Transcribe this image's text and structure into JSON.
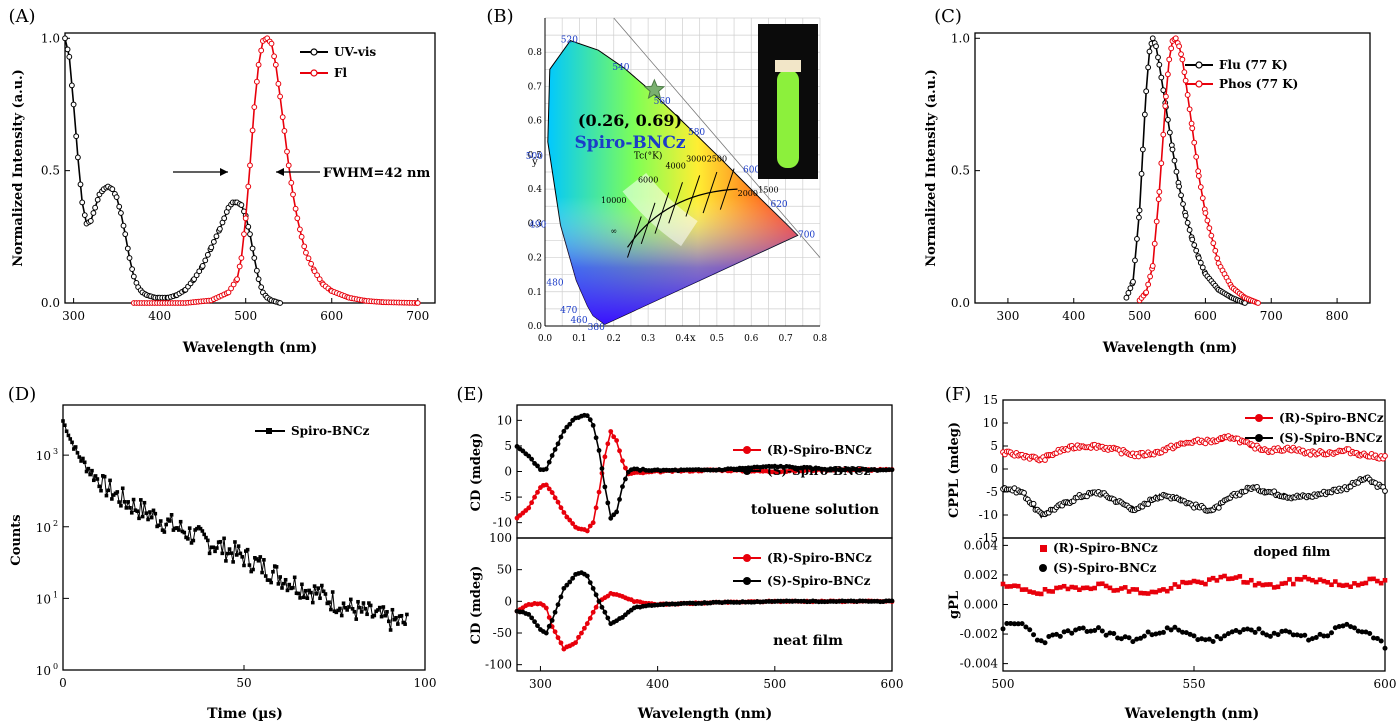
{
  "chart_data": [
    {
      "panel": "(A)",
      "type": "line",
      "xlabel": "Wavelength (nm)",
      "ylabel": "Normalized Intensity (a.u.)",
      "xlim": [
        290,
        720
      ],
      "ylim": [
        0,
        1.02
      ],
      "xticks": [
        "300",
        "400",
        "500",
        "600",
        "700"
      ],
      "yticks": [
        "0.0",
        "0.5",
        "1.0"
      ],
      "annotation": "FWHM=42 nm",
      "legend": "top-right",
      "series": [
        {
          "name": "UV-vis",
          "color": "#000000",
          "x": [
            290,
            295,
            300,
            305,
            310,
            315,
            320,
            325,
            330,
            335,
            340,
            345,
            350,
            355,
            360,
            365,
            370,
            375,
            380,
            385,
            390,
            395,
            400,
            410,
            420,
            430,
            440,
            450,
            460,
            470,
            475,
            480,
            485,
            490,
            495,
            500,
            505,
            510,
            515,
            520,
            525,
            530,
            535,
            540
          ],
          "y": [
            1.0,
            0.93,
            0.75,
            0.55,
            0.38,
            0.3,
            0.31,
            0.36,
            0.41,
            0.43,
            0.44,
            0.43,
            0.4,
            0.34,
            0.26,
            0.17,
            0.1,
            0.06,
            0.04,
            0.03,
            0.025,
            0.02,
            0.02,
            0.02,
            0.03,
            0.05,
            0.09,
            0.14,
            0.21,
            0.28,
            0.32,
            0.36,
            0.38,
            0.38,
            0.37,
            0.33,
            0.26,
            0.17,
            0.09,
            0.04,
            0.02,
            0.01,
            0.005,
            0
          ]
        },
        {
          "name": "Fl",
          "color": "#e8000b",
          "x": [
            370,
            400,
            430,
            460,
            480,
            490,
            495,
            500,
            505,
            510,
            515,
            520,
            525,
            530,
            535,
            540,
            545,
            550,
            555,
            560,
            565,
            570,
            580,
            590,
            600,
            620,
            640,
            660,
            700
          ],
          "y": [
            0,
            0,
            0,
            0.01,
            0.04,
            0.09,
            0.17,
            0.32,
            0.52,
            0.74,
            0.9,
            0.99,
            1.0,
            0.98,
            0.9,
            0.78,
            0.65,
            0.52,
            0.41,
            0.32,
            0.25,
            0.19,
            0.12,
            0.07,
            0.045,
            0.02,
            0.008,
            0.003,
            0
          ]
        }
      ]
    },
    {
      "panel": "(B)",
      "type": "diagram",
      "xlabel": "x",
      "ylabel": "y",
      "xlim": [
        0.0,
        0.8
      ],
      "ylim": [
        0.0,
        0.9
      ],
      "xticks": [
        "0.0",
        "0.1",
        "0.2",
        "0.3",
        "0.4",
        "0.5",
        "0.6",
        "0.7",
        "0.8"
      ],
      "yticks": [
        "0.0",
        "0.1",
        "0.2",
        "0.3",
        "0.4",
        "0.5",
        "0.6",
        "0.7",
        "0.8"
      ],
      "wavelength_labels": [
        "380",
        "460",
        "470",
        "480",
        "490",
        "500",
        "520",
        "540",
        "560",
        "580",
        "600",
        "620",
        "700"
      ],
      "cct_label": "Tc(°K)",
      "cct_values": [
        "10000",
        "6000",
        "4000",
        "3000",
        "2500",
        "2000",
        "1500",
        "∞"
      ],
      "point": {
        "x": 0.26,
        "y": 0.69,
        "label": "(0.26, 0.69)",
        "name": "Spiro-BNCz"
      }
    },
    {
      "panel": "(C)",
      "type": "line",
      "xlabel": "Wavelength (nm)",
      "ylabel": "Normalized Intensity (a.u.)",
      "xlim": [
        250,
        850
      ],
      "ylim": [
        0,
        1.02
      ],
      "xticks": [
        "300",
        "400",
        "500",
        "600",
        "700",
        "800"
      ],
      "yticks": [
        "0.0",
        "0.5",
        "1.0"
      ],
      "legend": "top-right",
      "series": [
        {
          "name": "Flu (77 K)",
          "color": "#000000",
          "x": [
            480,
            490,
            500,
            505,
            510,
            515,
            520,
            525,
            530,
            540,
            550,
            560,
            570,
            580,
            590,
            600,
            620,
            640,
            660
          ],
          "y": [
            0.02,
            0.08,
            0.35,
            0.58,
            0.8,
            0.95,
            1.0,
            0.97,
            0.9,
            0.74,
            0.58,
            0.44,
            0.33,
            0.24,
            0.17,
            0.11,
            0.05,
            0.02,
            0
          ]
        },
        {
          "name": "Phos (77 K)",
          "color": "#e8000b",
          "x": [
            500,
            510,
            520,
            530,
            540,
            545,
            550,
            555,
            560,
            565,
            570,
            580,
            590,
            600,
            620,
            640,
            660,
            680
          ],
          "y": [
            0.01,
            0.04,
            0.14,
            0.42,
            0.78,
            0.92,
            0.99,
            1.0,
            0.97,
            0.92,
            0.84,
            0.66,
            0.48,
            0.34,
            0.15,
            0.06,
            0.02,
            0
          ]
        }
      ]
    },
    {
      "panel": "(D)",
      "type": "line",
      "xlabel": "Time (µs)",
      "ylabel": "Counts",
      "xlim": [
        0,
        100
      ],
      "ylim_log10": [
        0,
        3.7
      ],
      "scale": "log",
      "xticks": [
        "0",
        "50",
        "100"
      ],
      "yticks": [
        "10",
        "10",
        "10",
        "10"
      ],
      "yticks_exp": [
        "0",
        "1",
        "2",
        "3"
      ],
      "legend": "top-right",
      "series": [
        {
          "name": "Spiro-BNCz",
          "color": "#000000",
          "x": [
            0,
            2,
            4,
            6,
            8,
            10,
            12,
            15,
            18,
            20,
            25,
            30,
            35,
            40,
            45,
            50,
            55,
            60,
            65,
            70,
            75,
            80,
            85,
            90,
            95
          ],
          "y": [
            3000,
            1700,
            1050,
            750,
            560,
            440,
            350,
            270,
            215,
            190,
            140,
            105,
            80,
            62,
            48,
            38,
            28,
            20,
            15,
            12,
            9,
            7,
            6,
            5,
            4.5
          ]
        }
      ]
    },
    {
      "panel": "(E)",
      "type": "line",
      "xlabel": "Wavelength (nm)",
      "xlim": [
        280,
        600
      ],
      "xticks": [
        "300",
        "400",
        "500",
        "600"
      ],
      "top": {
        "ylabel": "CD (mdeg)",
        "ylim": [
          -13,
          13
        ],
        "yticks": [
          "10",
          "5",
          "0",
          "-5",
          "-10"
        ],
        "annotation": "toluene solution",
        "series": [
          {
            "name": "(R)-Spiro-BNCz",
            "color": "#e8000b",
            "x": [
              280,
              290,
              300,
              305,
              310,
              320,
              330,
              340,
              345,
              350,
              355,
              360,
              365,
              370,
              375,
              380,
              390,
              400,
              450,
              500,
              550,
              600
            ],
            "y": [
              -9,
              -7,
              -3,
              -2.5,
              -4,
              -8,
              -11,
              -11.5,
              -10,
              -4,
              3,
              7.8,
              6,
              2,
              -0.5,
              -0.3,
              -0.2,
              0,
              0.3,
              0,
              0.4,
              0.3
            ]
          },
          {
            "name": "(S)-Spiro-BNCz",
            "color": "#000000",
            "x": [
              280,
              290,
              300,
              305,
              310,
              320,
              330,
              340,
              345,
              350,
              355,
              360,
              365,
              370,
              375,
              380,
              390,
              400,
              450,
              500,
              550,
              600
            ],
            "y": [
              5,
              3,
              0.3,
              0.5,
              3,
              8,
              10.5,
              11,
              9,
              4,
              -3,
              -9,
              -8,
              -3,
              0,
              0.4,
              0.3,
              0.2,
              0.3,
              1,
              0.4,
              0.3
            ]
          }
        ]
      },
      "bottom": {
        "ylabel": "CD (mdeg)",
        "ylim": [
          -110,
          100
        ],
        "yticks": [
          "100",
          "50",
          "0",
          "-50",
          "-100"
        ],
        "annotation": "neat film",
        "series": [
          {
            "name": "(R)-Spiro-BNCz",
            "color": "#e8000b",
            "x": [
              280,
              290,
              300,
              305,
              310,
              320,
              330,
              340,
              350,
              360,
              370,
              380,
              400,
              450,
              500,
              550,
              600
            ],
            "y": [
              -15,
              -5,
              -3,
              -10,
              -40,
              -75,
              -65,
              -35,
              0,
              12,
              8,
              0,
              -5,
              -2,
              0,
              0,
              0
            ]
          },
          {
            "name": "(S)-Spiro-BNCz",
            "color": "#000000",
            "x": [
              280,
              290,
              300,
              305,
              310,
              320,
              330,
              335,
              340,
              350,
              360,
              370,
              380,
              400,
              450,
              500,
              550,
              600
            ],
            "y": [
              -15,
              -20,
              -45,
              -50,
              -30,
              20,
              42,
              45,
              40,
              0,
              -35,
              -25,
              -10,
              -5,
              -2,
              0,
              0,
              0
            ]
          }
        ]
      }
    },
    {
      "panel": "(F)",
      "type": "line",
      "xlabel": "Wavelength (nm)",
      "xlim": [
        500,
        600
      ],
      "xticks": [
        "500",
        "550",
        "600"
      ],
      "top": {
        "ylabel": "CPPL (mdeg)",
        "ylim": [
          -15,
          15
        ],
        "yticks": [
          "15",
          "10",
          "5",
          "0",
          "-5",
          "-10",
          "-15"
        ],
        "series": [
          {
            "name": "(R)-Spiro-BNCz",
            "color": "#e8000b",
            "x": [
              500,
              505,
              510,
              515,
              520,
              525,
              530,
              535,
              540,
              545,
              550,
              555,
              560,
              565,
              570,
              575,
              580,
              585,
              590,
              595,
              600
            ],
            "y": [
              3.5,
              3,
              2,
              4,
              5,
              5,
              4,
              3,
              3.5,
              5,
              6,
              6,
              7,
              5,
              4,
              4.5,
              3.5,
              3.5,
              4,
              3,
              2.5
            ]
          },
          {
            "name": "(S)-Spiro-BNCz",
            "color": "#000000",
            "x": [
              500,
              505,
              510,
              515,
              520,
              525,
              530,
              535,
              540,
              545,
              550,
              555,
              560,
              565,
              570,
              575,
              580,
              585,
              590,
              595,
              600
            ],
            "y": [
              -4,
              -5,
              -10,
              -8,
              -6,
              -5,
              -7,
              -9,
              -6,
              -6,
              -8,
              -9,
              -6,
              -4,
              -5,
              -6,
              -6,
              -5,
              -4,
              -2,
              -4.5
            ]
          }
        ]
      },
      "bottom": {
        "ylabel": "gPL",
        "ylim": [
          -0.0045,
          0.0045
        ],
        "yticks": [
          "0.004",
          "0.002",
          "0.000",
          "-0.002",
          "-0.004"
        ],
        "annotation": "doped film",
        "series": [
          {
            "name": "(R)-Spiro-BNCz",
            "color": "#e8000b",
            "x": [
              500,
              505,
              510,
              515,
              520,
              525,
              530,
              535,
              540,
              545,
              550,
              555,
              560,
              565,
              570,
              575,
              580,
              585,
              590,
              595,
              600
            ],
            "y": [
              0.0012,
              0.0011,
              0.0008,
              0.001,
              0.0012,
              0.0013,
              0.0011,
              0.0009,
              0.0008,
              0.0012,
              0.0015,
              0.0016,
              0.0019,
              0.0015,
              0.0012,
              0.0015,
              0.0018,
              0.0015,
              0.0013,
              0.0016,
              0.0015
            ]
          },
          {
            "name": "(S)-Spiro-BNCz",
            "color": "#000000",
            "x": [
              500,
              505,
              510,
              515,
              520,
              525,
              530,
              535,
              540,
              545,
              550,
              555,
              560,
              565,
              570,
              575,
              580,
              585,
              590,
              595,
              600
            ],
            "y": [
              -0.0015,
              -0.0013,
              -0.0025,
              -0.002,
              -0.0018,
              -0.0017,
              -0.0022,
              -0.0024,
              -0.0018,
              -0.0017,
              -0.0022,
              -0.0024,
              -0.002,
              -0.0016,
              -0.0022,
              -0.0018,
              -0.0023,
              -0.002,
              -0.0013,
              -0.002,
              -0.0028
            ]
          }
        ]
      }
    }
  ]
}
